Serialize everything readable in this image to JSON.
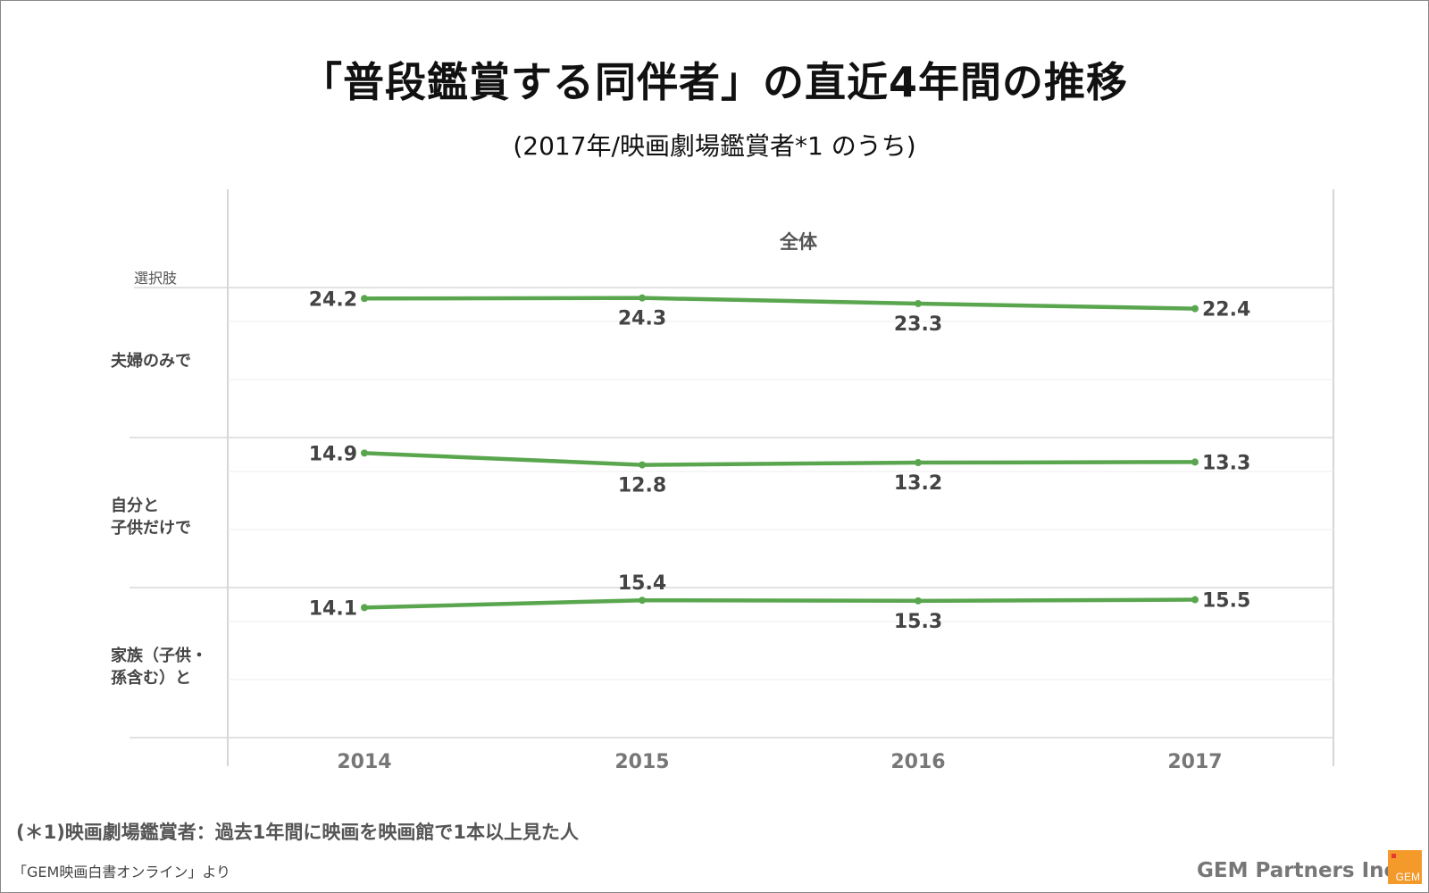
{
  "title": "「普段鑑賞する同伴者」の直近4年間の推移",
  "subtitle": "(2017年/映画劇場鑑賞者*1 のうち)",
  "chart_data": {
    "type": "line",
    "panel_title": "全体",
    "row_header": "選択肢",
    "categories": [
      "2014",
      "2015",
      "2016",
      "2017"
    ],
    "series": [
      {
        "name": "夫婦のみで",
        "values": [
          24.2,
          24.3,
          23.3,
          22.4
        ],
        "labels": [
          "24.2",
          "24.3",
          "23.3",
          "22.4"
        ]
      },
      {
        "name": "自分と\n子供だけで",
        "values": [
          14.9,
          12.8,
          13.2,
          13.3
        ],
        "labels": [
          "14.9",
          "12.8",
          "13.2",
          "13.3"
        ]
      },
      {
        "name": "家族（子供・\n孫含む）と",
        "values": [
          14.1,
          15.4,
          15.3,
          15.5
        ],
        "labels": [
          "14.1",
          "15.4",
          "15.3",
          "15.5"
        ]
      }
    ],
    "line_color": "#5aa64f",
    "grid": true
  },
  "footnote": "(＊1)映画劇場鑑賞者：過去1年間に映画を映画館で1本以上見た人",
  "source": "「GEM映画白書オンライン」より",
  "brand": "GEM Partners Inc.",
  "logo_text": "GEM",
  "logo_color": "#f39a2b"
}
